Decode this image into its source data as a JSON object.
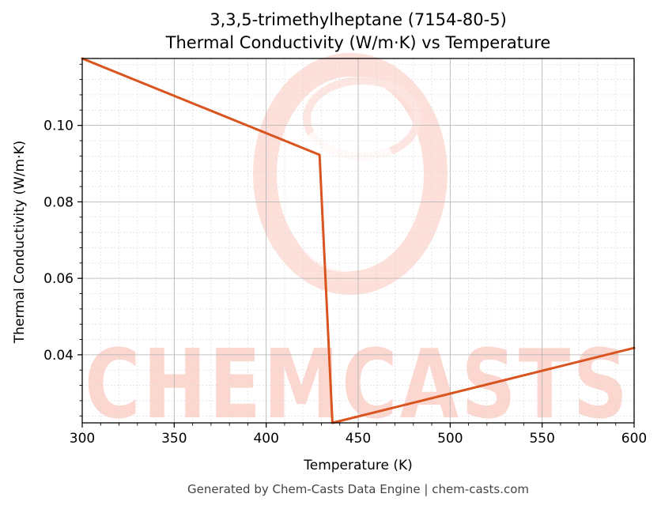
{
  "chart_data": {
    "type": "line",
    "title": "3,3,5-trimethylheptane (7154-80-5)",
    "subtitle": "Thermal Conductivity (W/m·K) vs Temperature",
    "xlabel": "Temperature (K)",
    "ylabel": "Thermal Conductivity (W/m·K)",
    "xlim": [
      300,
      600
    ],
    "ylim": [
      0.0222,
      0.1175
    ],
    "x_ticks": [
      300,
      350,
      400,
      450,
      500,
      550,
      600
    ],
    "x_tick_labels": [
      "300",
      "350",
      "400",
      "450",
      "500",
      "550",
      "600"
    ],
    "y_ticks": [
      0.04,
      0.06,
      0.08,
      0.1
    ],
    "y_tick_labels": [
      "0.04",
      "0.06",
      "0.08",
      "0.10"
    ],
    "grid": true,
    "legend": "none",
    "series": [
      {
        "color": "#d9541e",
        "points": [
          [
            300,
            0.1175
          ],
          [
            429,
            0.0923
          ],
          [
            436,
            0.0222
          ],
          [
            600,
            0.0418
          ]
        ]
      }
    ]
  },
  "watermark": {
    "text": "CHEMCASTS",
    "color": "#fcd7d0"
  },
  "footer": "Generated by Chem-Casts Data Engine | chem-casts.com"
}
